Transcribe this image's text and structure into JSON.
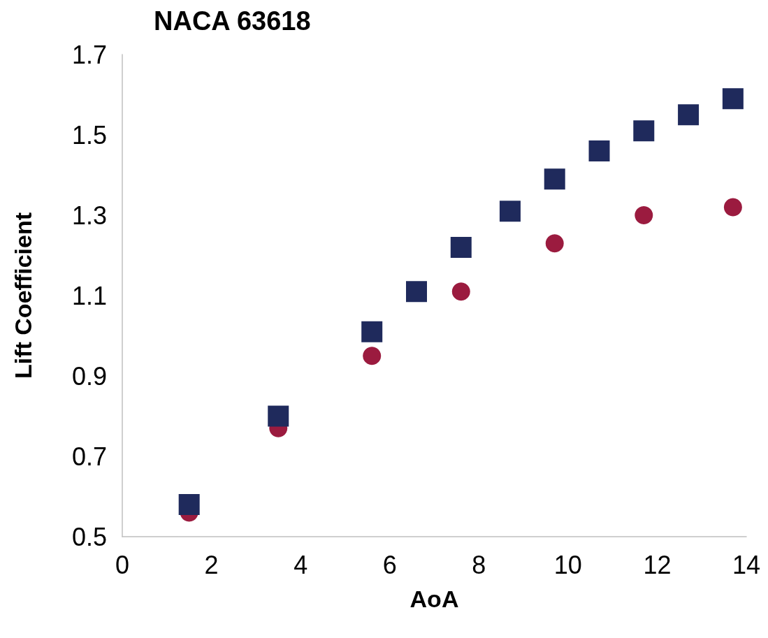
{
  "chart_data": {
    "type": "scatter",
    "title": "NACA 63618",
    "xlabel": "AoA",
    "ylabel": "Lift Coefficient",
    "xlim": [
      0,
      14
    ],
    "xticks": [
      0,
      2,
      4,
      6,
      8,
      10,
      12,
      14
    ],
    "ylim": [
      0.5,
      1.7
    ],
    "yticks": [
      0.5,
      0.7,
      0.9,
      1.1,
      1.3,
      1.5,
      1.7
    ],
    "grid": false,
    "series": [
      {
        "marker": "circle",
        "color": "#9b1b3f",
        "x": [
          1.5,
          3.5,
          5.6,
          7.6,
          9.7,
          11.7,
          13.7
        ],
        "values": [
          0.56,
          0.77,
          0.95,
          1.11,
          1.23,
          1.3,
          1.32
        ]
      },
      {
        "marker": "square",
        "color": "#1f2a5c",
        "x": [
          1.5,
          3.5,
          5.6,
          6.6,
          7.6,
          8.7,
          9.7,
          10.7,
          11.7,
          12.7,
          13.7
        ],
        "values": [
          0.58,
          0.8,
          1.01,
          1.11,
          1.22,
          1.31,
          1.39,
          1.46,
          1.51,
          1.55,
          1.59
        ]
      }
    ]
  }
}
